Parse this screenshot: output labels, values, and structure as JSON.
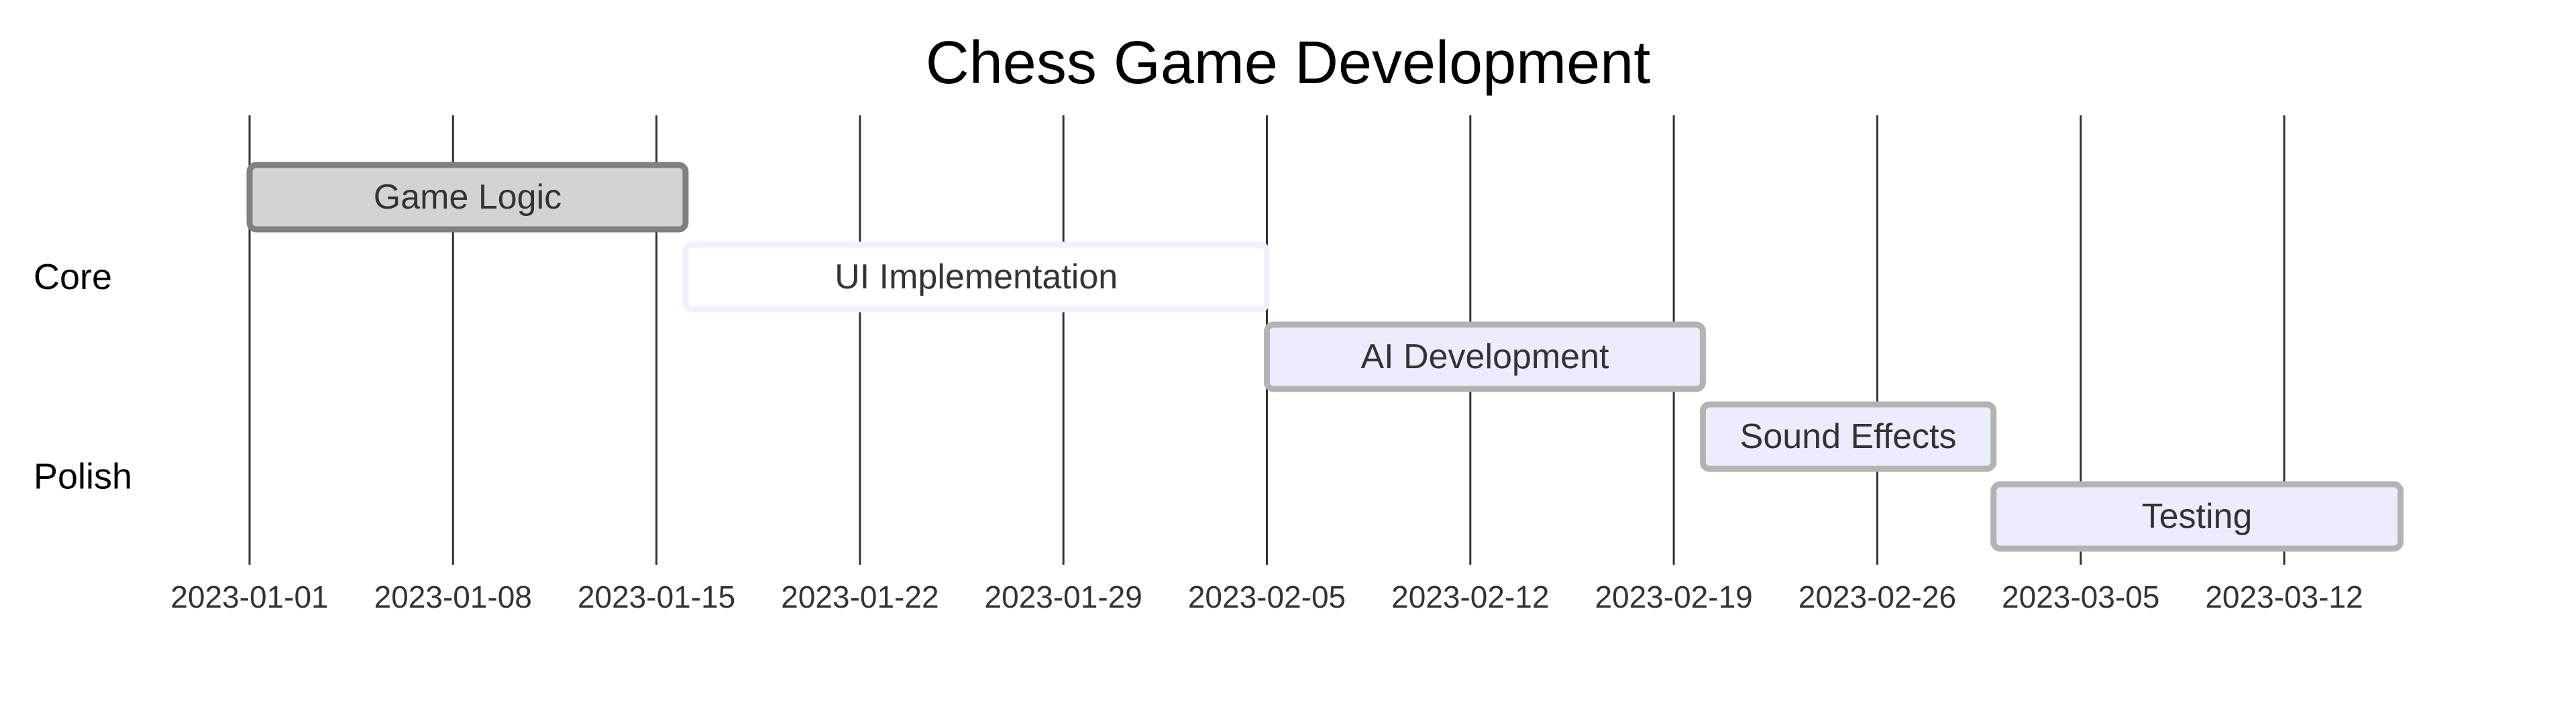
{
  "chart_data": {
    "type": "gantt",
    "title": "Chess Game Development",
    "x_start": "2023-01-01",
    "x_end": "2023-03-15",
    "ticks": [
      "2023-01-01",
      "2023-01-08",
      "2023-01-15",
      "2023-01-22",
      "2023-01-29",
      "2023-02-05",
      "2023-02-12",
      "2023-02-19",
      "2023-02-26",
      "2023-03-05",
      "2023-03-12"
    ],
    "sections": [
      {
        "name": "Core",
        "tasks": [
          "Game Logic",
          "UI Implementation",
          "AI Development"
        ]
      },
      {
        "name": "Polish",
        "tasks": [
          "Sound Effects",
          "Testing"
        ]
      }
    ],
    "tasks": [
      {
        "name": "Game Logic",
        "section": "Core",
        "start": "2023-01-01",
        "end": "2023-01-16",
        "status": "done",
        "fill": "#d3d3d3",
        "stroke": "#808080"
      },
      {
        "name": "UI Implementation",
        "section": "Core",
        "start": "2023-01-16",
        "end": "2023-02-05",
        "status": "active",
        "fill": "#ffffff",
        "stroke": "#f0f0ff"
      },
      {
        "name": "AI Development",
        "section": "Core",
        "start": "2023-02-05",
        "end": "2023-02-20",
        "status": "",
        "fill": "#ececff",
        "stroke": "#b3b3b3"
      },
      {
        "name": "Sound Effects",
        "section": "Polish",
        "start": "2023-02-20",
        "end": "2023-03-02",
        "status": "",
        "fill": "#ececff",
        "stroke": "#b3b3b3"
      },
      {
        "name": "Testing",
        "section": "Polish",
        "start": "2023-03-02",
        "end": "2023-03-16",
        "status": "",
        "fill": "#ececff",
        "stroke": "#b3b3b3"
      }
    ],
    "grid": true
  }
}
